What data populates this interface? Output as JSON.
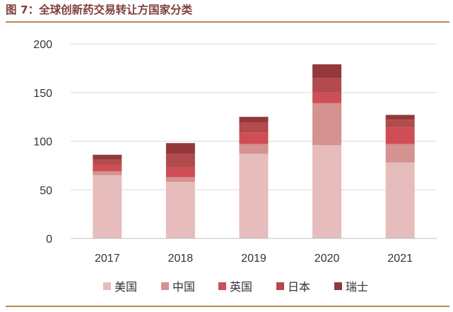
{
  "figure": {
    "title": "图 7：全球创新药交易转让方国家分类"
  },
  "chart_data": {
    "type": "bar",
    "stacked": true,
    "categories": [
      "2017",
      "2018",
      "2019",
      "2020",
      "2021"
    ],
    "series": [
      {
        "name": "美国",
        "color": "#e6bcbc",
        "values": [
          65,
          58,
          87,
          96,
          78
        ]
      },
      {
        "name": "中国",
        "color": "#d49290",
        "values": [
          4,
          5,
          10,
          43,
          19
        ]
      },
      {
        "name": "英国",
        "color": "#cf4e56",
        "values": [
          7,
          10,
          12,
          11,
          17
        ]
      },
      {
        "name": "日本",
        "color": "#b34a4d",
        "values": [
          5,
          14,
          10,
          15,
          8
        ]
      },
      {
        "name": "瑞士",
        "color": "#93393c",
        "values": [
          5,
          11,
          6,
          14,
          5
        ]
      }
    ],
    "yticks": [
      "0",
      "50",
      "100",
      "150",
      "200"
    ],
    "ylim": [
      0,
      200
    ],
    "grid": true,
    "legend_position": "bottom"
  }
}
